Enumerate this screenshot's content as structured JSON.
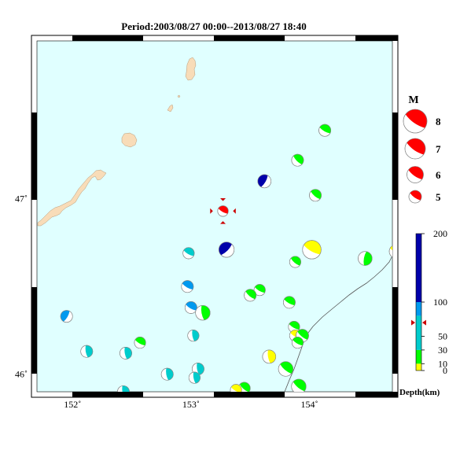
{
  "map": {
    "title": "Period:2003/08/27 00:00--2013/08/27 18:40",
    "lon_range": [
      151.7,
      154.7
    ],
    "lat_range": [
      45.9,
      47.9
    ],
    "x_ticks": [
      {
        "value": 152,
        "label": "152˚"
      },
      {
        "value": 153,
        "label": "153˚"
      },
      {
        "value": 154,
        "label": "154˚"
      }
    ],
    "y_ticks": [
      {
        "value": 46,
        "label": "46˚"
      },
      {
        "value": 47,
        "label": "47˚"
      }
    ],
    "colors": {
      "sea": "#e0ffff",
      "land": "#f8dcb8",
      "trench_line": "#555555",
      "mechanism_white": "#ffffff"
    }
  },
  "magnitude_legend": {
    "title": "M",
    "items": [
      {
        "label": "8",
        "magnitude": 8
      },
      {
        "label": "7",
        "magnitude": 7
      },
      {
        "label": "6",
        "magnitude": 6
      },
      {
        "label": "5",
        "magnitude": 5
      }
    ],
    "color": "#ff0000"
  },
  "depth_scale": {
    "title": "Depth(km)",
    "ticks": [
      {
        "label": "0",
        "depth": 0
      },
      {
        "label": "10",
        "depth": 10
      },
      {
        "label": "30",
        "depth": 30
      },
      {
        "label": "50",
        "depth": 50
      },
      {
        "label": "100",
        "depth": 100
      },
      {
        "label": "200",
        "depth": 200
      }
    ],
    "bands": [
      {
        "from": 0,
        "to": 10,
        "color": "#ffff00"
      },
      {
        "from": 10,
        "to": 30,
        "color": "#00ff00"
      },
      {
        "from": 30,
        "to": 80,
        "color": "#00cccc"
      },
      {
        "from": 80,
        "to": 100,
        "color": "#0099ee"
      },
      {
        "from": 100,
        "to": 200,
        "color": "#0000aa"
      }
    ],
    "marker_depth": 70,
    "marker_color": "#cc0000"
  },
  "events": [
    {
      "lon": 154.13,
      "lat": 47.39,
      "mag": 5.6,
      "depth": 20,
      "strike": 30
    },
    {
      "lon": 153.9,
      "lat": 47.22,
      "mag": 5.6,
      "depth": 20,
      "strike": 45
    },
    {
      "lon": 153.62,
      "lat": 47.1,
      "mag": 5.8,
      "depth": 150,
      "strike": 300
    },
    {
      "lon": 154.05,
      "lat": 47.02,
      "mag": 5.6,
      "depth": 22,
      "strike": 40
    },
    {
      "lon": 153.27,
      "lat": 46.93,
      "mag": 5.4,
      "depth": 70,
      "strike": 30,
      "highlight": true
    },
    {
      "lon": 153.3,
      "lat": 46.71,
      "mag": 6.1,
      "depth": 150,
      "strike": 315
    },
    {
      "lon": 152.98,
      "lat": 46.69,
      "mag": 5.5,
      "depth": 45,
      "strike": 30
    },
    {
      "lon": 154.02,
      "lat": 46.71,
      "mag": 6.6,
      "depth": 5,
      "strike": 30
    },
    {
      "lon": 153.88,
      "lat": 46.64,
      "mag": 5.5,
      "depth": 20,
      "strike": 40
    },
    {
      "lon": 154.47,
      "lat": 46.66,
      "mag": 5.9,
      "depth": 20,
      "strike": 100
    },
    {
      "lon": 154.73,
      "lat": 46.7,
      "mag": 5.8,
      "depth": 5,
      "strike": 30
    },
    {
      "lon": 152.97,
      "lat": 46.5,
      "mag": 5.6,
      "depth": 90,
      "strike": 30
    },
    {
      "lon": 153.58,
      "lat": 46.48,
      "mag": 5.5,
      "depth": 20,
      "strike": 30
    },
    {
      "lon": 153.5,
      "lat": 46.45,
      "mag": 5.6,
      "depth": 20,
      "strike": 40
    },
    {
      "lon": 153.83,
      "lat": 46.41,
      "mag": 5.6,
      "depth": 20,
      "strike": 30
    },
    {
      "lon": 153.0,
      "lat": 46.38,
      "mag": 5.6,
      "depth": 90,
      "strike": 30
    },
    {
      "lon": 153.1,
      "lat": 46.35,
      "mag": 6.0,
      "depth": 20,
      "strike": 80
    },
    {
      "lon": 151.95,
      "lat": 46.33,
      "mag": 5.6,
      "depth": 90,
      "strike": 300
    },
    {
      "lon": 153.87,
      "lat": 46.27,
      "mag": 5.5,
      "depth": 20,
      "strike": 30
    },
    {
      "lon": 153.02,
      "lat": 46.22,
      "mag": 5.5,
      "depth": 45,
      "strike": 80
    },
    {
      "lon": 153.88,
      "lat": 46.22,
      "mag": 5.5,
      "depth": 5,
      "strike": 30
    },
    {
      "lon": 153.94,
      "lat": 46.22,
      "mag": 5.7,
      "depth": 20,
      "strike": 40
    },
    {
      "lon": 153.9,
      "lat": 46.18,
      "mag": 5.5,
      "depth": 20,
      "strike": 30
    },
    {
      "lon": 152.57,
      "lat": 46.18,
      "mag": 5.5,
      "depth": 20,
      "strike": 30
    },
    {
      "lon": 152.12,
      "lat": 46.13,
      "mag": 5.6,
      "depth": 45,
      "strike": 80
    },
    {
      "lon": 152.45,
      "lat": 46.12,
      "mag": 5.6,
      "depth": 45,
      "strike": 80
    },
    {
      "lon": 153.66,
      "lat": 46.1,
      "mag": 5.8,
      "depth": 5,
      "strike": 80
    },
    {
      "lon": 153.8,
      "lat": 46.03,
      "mag": 6.0,
      "depth": 20,
      "strike": 40
    },
    {
      "lon": 153.06,
      "lat": 46.03,
      "mag": 5.6,
      "depth": 45,
      "strike": 80
    },
    {
      "lon": 152.8,
      "lat": 46.0,
      "mag": 5.6,
      "depth": 45,
      "strike": 80
    },
    {
      "lon": 153.03,
      "lat": 45.98,
      "mag": 5.5,
      "depth": 45,
      "strike": 80
    },
    {
      "lon": 153.91,
      "lat": 45.93,
      "mag": 6.0,
      "depth": 20,
      "strike": 40
    },
    {
      "lon": 152.43,
      "lat": 45.9,
      "mag": 5.6,
      "depth": 45,
      "strike": 80
    },
    {
      "lon": 153.45,
      "lat": 45.92,
      "mag": 5.6,
      "depth": 20,
      "strike": 40
    },
    {
      "lon": 153.38,
      "lat": 45.91,
      "mag": 5.5,
      "depth": 5,
      "strike": 30
    }
  ]
}
